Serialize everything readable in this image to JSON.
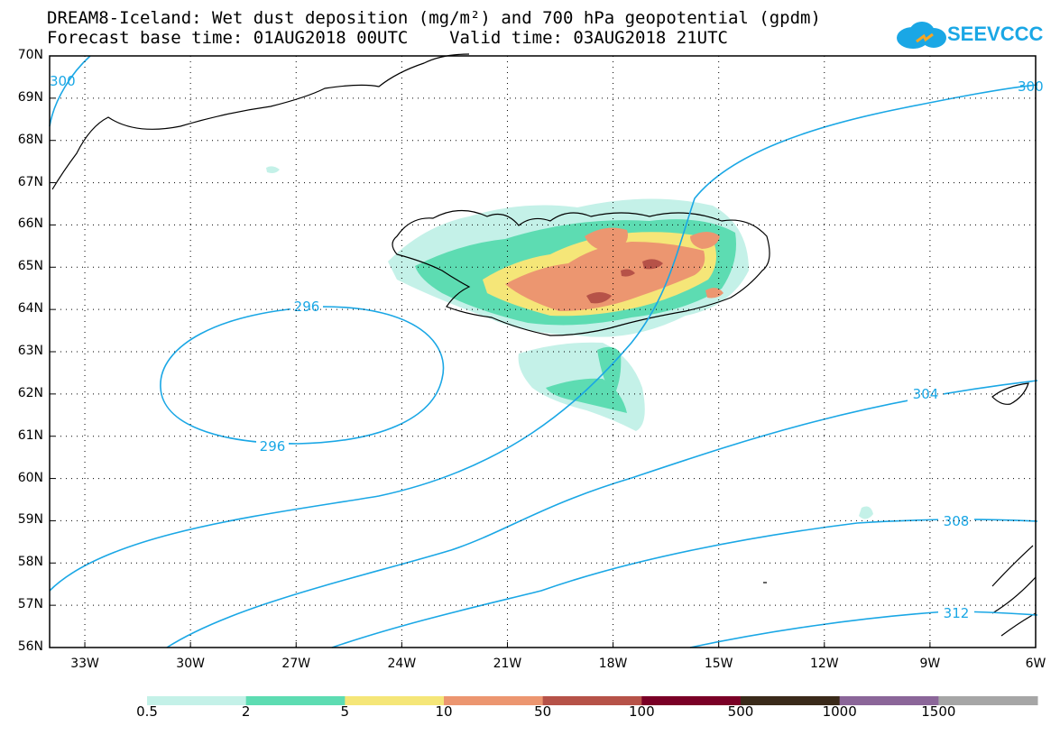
{
  "title": {
    "line1": "DREAM8-Iceland: Wet dust deposition (mg/m²) and 700 hPa geopotential (gpdm)",
    "line2": "Forecast base time: 01AUG2018 00UTC    Valid time: 03AUG2018 21UTC"
  },
  "logo": {
    "text": "SEEVCCC",
    "color": "#1aa7e5",
    "icon": "cloud-icon"
  },
  "axes": {
    "lat_labels": [
      "70N",
      "69N",
      "68N",
      "67N",
      "66N",
      "65N",
      "64N",
      "63N",
      "62N",
      "61N",
      "60N",
      "59N",
      "58N",
      "57N",
      "56N"
    ],
    "lat_values": [
      70,
      69,
      68,
      67,
      66,
      65,
      64,
      63,
      62,
      61,
      60,
      59,
      58,
      57,
      56
    ],
    "lon_labels": [
      "33W",
      "30W",
      "27W",
      "24W",
      "21W",
      "18W",
      "15W",
      "12W",
      "9W",
      "6W"
    ],
    "lon_values": [
      -33,
      -30,
      -27,
      -24,
      -21,
      -18,
      -15,
      -12,
      -9,
      -6
    ],
    "lon_range": [
      -34,
      -6
    ],
    "lat_range": [
      56,
      70
    ],
    "grid": "dotted"
  },
  "contours": {
    "color": "#1aa7e5",
    "labels": [
      "296",
      "296",
      "300",
      "300",
      "300",
      "304",
      "308",
      "312"
    ]
  },
  "colorbar": {
    "labels": [
      "0.5",
      "2",
      "5",
      "10",
      "50",
      "100",
      "500",
      "1000",
      "1500"
    ],
    "colors": [
      "#c4f1e8",
      "#5ddcb2",
      "#f5e678",
      "#ec9670",
      "#b65248",
      "#7a0026",
      "#3a2a1a",
      "#8b6699",
      "#a6a6a6"
    ]
  }
}
